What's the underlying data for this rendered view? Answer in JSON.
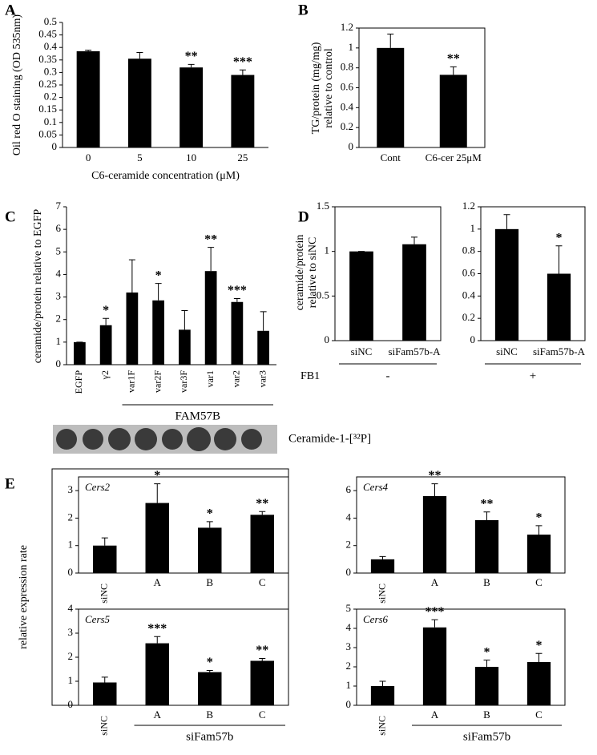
{
  "chart_data": [
    {
      "type": "bar",
      "panel": "A",
      "ylabel": [
        "Oil red O staining (OD 535nm)"
      ],
      "xlabel": "C6-ceramide concentration (μM)",
      "categories": [
        "0",
        "5",
        "10",
        "25"
      ],
      "values": [
        0.385,
        0.355,
        0.32,
        0.29
      ],
      "errors": [
        0.004,
        0.025,
        0.012,
        0.02
      ],
      "annotations": [
        null,
        null,
        "**",
        "***"
      ],
      "ylim": [
        0,
        0.5
      ],
      "yticks": [
        0,
        0.05,
        0.1,
        0.15,
        0.2,
        0.25,
        0.3,
        0.35,
        0.4,
        0.45,
        0.5
      ],
      "color": "#000000"
    },
    {
      "type": "bar",
      "panel": "B",
      "ylabel": [
        "TG/protein (mg/mg)",
        "relative to control"
      ],
      "categories": [
        "Cont",
        "C6-cer 25μM"
      ],
      "values": [
        1.0,
        0.73
      ],
      "errors": [
        0.14,
        0.08
      ],
      "annotations": [
        null,
        "**"
      ],
      "ylim": [
        0,
        1.2
      ],
      "yticks": [
        0,
        0.2,
        0.4,
        0.6,
        0.8,
        1,
        1.2
      ],
      "color": "#000000"
    },
    {
      "type": "bar",
      "panel": "C",
      "ylabel": [
        "ceramide/protein relative to EGFP"
      ],
      "categories": [
        "EGFP",
        "γ2",
        "var1F",
        "var2F",
        "var3F",
        "var1",
        "var2",
        "var3"
      ],
      "values": [
        1.0,
        1.75,
        3.2,
        2.85,
        1.55,
        4.15,
        2.78,
        1.5
      ],
      "errors": [
        0,
        0.3,
        1.45,
        0.75,
        0.85,
        1.05,
        0.15,
        0.85
      ],
      "annotations": [
        null,
        "*",
        null,
        "*",
        null,
        "**",
        "***",
        null
      ],
      "group_label": "FAM57B",
      "blot_label": "Ceramide-1-[³²P]",
      "ylim": [
        0,
        7
      ],
      "yticks": [
        0,
        1,
        2,
        3,
        4,
        5,
        6,
        7
      ],
      "color": "#000000"
    },
    {
      "type": "bar",
      "panel": "D",
      "ylabel": [
        "ceramide/protein",
        "relative to siNC"
      ],
      "categories": [
        "siNC",
        "siFam57b-A"
      ],
      "values": [
        1.0,
        1.08
      ],
      "errors": [
        0,
        0.08
      ],
      "annotations": [
        null,
        null
      ],
      "treatment_label": "FB1",
      "treatment": "-",
      "ylim": [
        0,
        1.5
      ],
      "yticks": [
        0,
        0.5,
        1,
        1.5
      ],
      "color": "#000000"
    },
    {
      "type": "bar",
      "categories": [
        "siNC",
        "siFam57b-A"
      ],
      "values": [
        1.0,
        0.6
      ],
      "errors": [
        0.13,
        0.25
      ],
      "annotations": [
        null,
        "*"
      ],
      "treatment": "+",
      "ylim": [
        0,
        1.2
      ],
      "yticks": [
        0,
        0.2,
        0.4,
        0.6,
        0.8,
        1,
        1.2
      ],
      "color": "#000000"
    },
    {
      "type": "bar",
      "panel": "E",
      "ylabel": [
        "relative expression rate"
      ],
      "subtitle": "Cers2",
      "categories": [
        "siNC",
        "A",
        "B",
        "C"
      ],
      "values": [
        1.0,
        2.55,
        1.65,
        2.12
      ],
      "errors": [
        0.28,
        0.7,
        0.22,
        0.12
      ],
      "annotations": [
        null,
        "*",
        "*",
        "**"
      ],
      "ylim": [
        0,
        3.5
      ],
      "yticks": [
        0,
        1,
        2,
        3
      ],
      "color": "#000000"
    },
    {
      "type": "bar",
      "subtitle": "Cers4",
      "categories": [
        "siNC",
        "A",
        "B",
        "C"
      ],
      "values": [
        1.0,
        5.6,
        3.85,
        2.8
      ],
      "errors": [
        0.2,
        0.9,
        0.6,
        0.65
      ],
      "annotations": [
        null,
        "**",
        "**",
        "*"
      ],
      "ylim": [
        0,
        7
      ],
      "yticks": [
        0,
        2,
        4,
        6
      ],
      "color": "#000000"
    },
    {
      "type": "bar",
      "subtitle": "Cers5",
      "categories": [
        "siNC",
        "A",
        "B",
        "C"
      ],
      "values": [
        0.95,
        2.58,
        1.38,
        1.85
      ],
      "errors": [
        0.22,
        0.28,
        0.07,
        0.1
      ],
      "annotations": [
        null,
        "***",
        "*",
        "**"
      ],
      "group_label": "siFam57b",
      "ylim": [
        0,
        4
      ],
      "yticks": [
        0,
        1,
        2,
        3,
        4
      ],
      "color": "#000000"
    },
    {
      "type": "bar",
      "subtitle": "Cers6",
      "categories": [
        "siNC",
        "A",
        "B",
        "C"
      ],
      "values": [
        1.0,
        4.05,
        2.0,
        2.25
      ],
      "errors": [
        0.25,
        0.4,
        0.35,
        0.45
      ],
      "annotations": [
        null,
        "***",
        "*",
        "*"
      ],
      "group_label": "siFam57b",
      "ylim": [
        0,
        5
      ],
      "yticks": [
        0,
        1,
        2,
        3,
        4,
        5
      ],
      "color": "#000000"
    }
  ]
}
